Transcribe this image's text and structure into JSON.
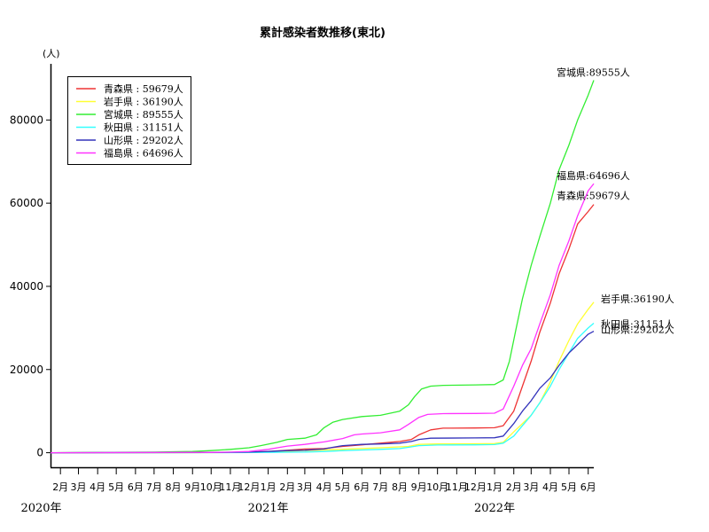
{
  "chart_data": {
    "type": "line",
    "title": "累計感染者数推移(東北)",
    "ylabel": "(人)",
    "ylim": [
      -3500,
      93500
    ],
    "yticks": [
      0,
      20000,
      40000,
      60000,
      80000
    ],
    "x_start": "2020-01-16",
    "x_end": "2022-06-10",
    "months": [
      {
        "date": "2020-02-01",
        "label": "2月"
      },
      {
        "date": "2020-03-01",
        "label": "3月"
      },
      {
        "date": "2020-04-01",
        "label": "4月"
      },
      {
        "date": "2020-05-01",
        "label": "5月"
      },
      {
        "date": "2020-06-01",
        "label": "6月"
      },
      {
        "date": "2020-07-01",
        "label": "7月"
      },
      {
        "date": "2020-08-01",
        "label": "8月"
      },
      {
        "date": "2020-09-01",
        "label": "9月"
      },
      {
        "date": "2020-10-01",
        "label": "10月"
      },
      {
        "date": "2020-11-01",
        "label": "11月"
      },
      {
        "date": "2020-12-01",
        "label": "12月"
      },
      {
        "date": "2021-01-01",
        "label": "1月"
      },
      {
        "date": "2021-02-01",
        "label": "2月"
      },
      {
        "date": "2021-03-01",
        "label": "3月"
      },
      {
        "date": "2021-04-01",
        "label": "4月"
      },
      {
        "date": "2021-05-01",
        "label": "5月"
      },
      {
        "date": "2021-06-01",
        "label": "6月"
      },
      {
        "date": "2021-07-01",
        "label": "7月"
      },
      {
        "date": "2021-08-01",
        "label": "8月"
      },
      {
        "date": "2021-09-01",
        "label": "9月"
      },
      {
        "date": "2021-10-01",
        "label": "10月"
      },
      {
        "date": "2021-11-01",
        "label": "11月"
      },
      {
        "date": "2021-12-01",
        "label": "12月"
      },
      {
        "date": "2022-01-01",
        "label": "1月"
      },
      {
        "date": "2022-02-01",
        "label": "2月"
      },
      {
        "date": "2022-03-01",
        "label": "3月"
      },
      {
        "date": "2022-04-01",
        "label": "4月"
      },
      {
        "date": "2022-05-01",
        "label": "5月"
      },
      {
        "date": "2022-06-01",
        "label": "6月"
      }
    ],
    "years": [
      {
        "date": "2020-01-01",
        "label": "2020年"
      },
      {
        "date": "2021-01-01",
        "label": "2021年"
      },
      {
        "date": "2022-01-01",
        "label": "2022年"
      }
    ],
    "legend_position": "top-left",
    "grid": false,
    "series": [
      {
        "name": "青森県",
        "legend": "青森県 : 59679人",
        "end_label": "青森県:59679人",
        "color": "#ee3333",
        "points": [
          [
            "2020-01-16",
            0
          ],
          [
            "2020-10-01",
            40
          ],
          [
            "2020-12-01",
            150
          ],
          [
            "2021-01-01",
            300
          ],
          [
            "2021-02-01",
            600
          ],
          [
            "2021-03-01",
            900
          ],
          [
            "2021-04-01",
            1000
          ],
          [
            "2021-05-01",
            1500
          ],
          [
            "2021-06-01",
            1900
          ],
          [
            "2021-07-01",
            2300
          ],
          [
            "2021-08-01",
            2700
          ],
          [
            "2021-08-20",
            3200
          ],
          [
            "2021-09-01",
            4300
          ],
          [
            "2021-09-20",
            5500
          ],
          [
            "2021-10-10",
            5900
          ],
          [
            "2021-12-01",
            5950
          ],
          [
            "2022-01-01",
            6000
          ],
          [
            "2022-01-15",
            6500
          ],
          [
            "2022-02-01",
            10000
          ],
          [
            "2022-02-15",
            16000
          ],
          [
            "2022-03-01",
            22000
          ],
          [
            "2022-03-15",
            29000
          ],
          [
            "2022-04-01",
            36000
          ],
          [
            "2022-04-15",
            43000
          ],
          [
            "2022-05-01",
            49000
          ],
          [
            "2022-05-15",
            55000
          ],
          [
            "2022-06-01",
            58000
          ],
          [
            "2022-06-10",
            59679
          ]
        ]
      },
      {
        "name": "岩手県",
        "legend": "岩手県 : 36190人",
        "end_label": "岩手県:36190人",
        "color": "#ffff33",
        "points": [
          [
            "2020-01-16",
            0
          ],
          [
            "2020-10-01",
            20
          ],
          [
            "2020-12-01",
            80
          ],
          [
            "2021-01-01",
            200
          ],
          [
            "2021-03-01",
            500
          ],
          [
            "2021-05-01",
            800
          ],
          [
            "2021-07-01",
            1200
          ],
          [
            "2021-08-15",
            1500
          ],
          [
            "2021-09-01",
            2000
          ],
          [
            "2021-10-01",
            2100
          ],
          [
            "2021-12-01",
            2150
          ],
          [
            "2022-01-01",
            2200
          ],
          [
            "2022-01-15",
            2500
          ],
          [
            "2022-02-01",
            5000
          ],
          [
            "2022-03-01",
            9000
          ],
          [
            "2022-03-15",
            12000
          ],
          [
            "2022-04-01",
            17000
          ],
          [
            "2022-04-15",
            22000
          ],
          [
            "2022-05-01",
            27000
          ],
          [
            "2022-05-15",
            31000
          ],
          [
            "2022-06-01",
            34500
          ],
          [
            "2022-06-10",
            36190
          ]
        ]
      },
      {
        "name": "宮城県",
        "legend": "宮城県 : 89555人",
        "end_label": "宮城県:89555人",
        "color": "#33ee33",
        "points": [
          [
            "2020-01-16",
            0
          ],
          [
            "2020-04-01",
            80
          ],
          [
            "2020-07-01",
            150
          ],
          [
            "2020-09-01",
            300
          ],
          [
            "2020-10-01",
            500
          ],
          [
            "2020-11-01",
            800
          ],
          [
            "2020-12-01",
            1200
          ],
          [
            "2020-12-20",
            1700
          ],
          [
            "2021-01-15",
            2500
          ],
          [
            "2021-02-01",
            3200
          ],
          [
            "2021-03-01",
            3500
          ],
          [
            "2021-03-20",
            4300
          ],
          [
            "2021-04-01",
            6000
          ],
          [
            "2021-04-15",
            7300
          ],
          [
            "2021-05-01",
            8000
          ],
          [
            "2021-06-01",
            8700
          ],
          [
            "2021-07-01",
            9000
          ],
          [
            "2021-08-01",
            10000
          ],
          [
            "2021-08-15",
            11500
          ],
          [
            "2021-08-25",
            13500
          ],
          [
            "2021-09-05",
            15300
          ],
          [
            "2021-09-20",
            16000
          ],
          [
            "2021-10-10",
            16200
          ],
          [
            "2021-12-01",
            16300
          ],
          [
            "2022-01-01",
            16400
          ],
          [
            "2022-01-15",
            17500
          ],
          [
            "2022-01-25",
            22000
          ],
          [
            "2022-02-05",
            30000
          ],
          [
            "2022-02-15",
            37000
          ],
          [
            "2022-03-01",
            45000
          ],
          [
            "2022-03-15",
            52000
          ],
          [
            "2022-04-01",
            60000
          ],
          [
            "2022-04-15",
            68000
          ],
          [
            "2022-05-01",
            74000
          ],
          [
            "2022-05-15",
            80000
          ],
          [
            "2022-06-01",
            86000
          ],
          [
            "2022-06-10",
            89555
          ]
        ]
      },
      {
        "name": "秋田県",
        "legend": "秋田県 : 31151人",
        "end_label": "秋田県:31151人",
        "color": "#33ffff",
        "points": [
          [
            "2020-01-16",
            0
          ],
          [
            "2020-10-01",
            20
          ],
          [
            "2020-12-01",
            50
          ],
          [
            "2021-01-01",
            80
          ],
          [
            "2021-03-01",
            150
          ],
          [
            "2021-04-01",
            300
          ],
          [
            "2021-05-01",
            500
          ],
          [
            "2021-06-01",
            650
          ],
          [
            "2021-07-01",
            800
          ],
          [
            "2021-08-01",
            1000
          ],
          [
            "2021-08-15",
            1300
          ],
          [
            "2021-09-01",
            1700
          ],
          [
            "2021-10-01",
            1850
          ],
          [
            "2021-12-01",
            1900
          ],
          [
            "2022-01-01",
            1950
          ],
          [
            "2022-01-15",
            2300
          ],
          [
            "2022-02-01",
            4000
          ],
          [
            "2022-02-15",
            6500
          ],
          [
            "2022-03-01",
            9000
          ],
          [
            "2022-03-15",
            12000
          ],
          [
            "2022-04-01",
            16000
          ],
          [
            "2022-04-15",
            20000
          ],
          [
            "2022-05-01",
            24000
          ],
          [
            "2022-05-15",
            27500
          ],
          [
            "2022-06-01",
            30000
          ],
          [
            "2022-06-10",
            31151
          ]
        ]
      },
      {
        "name": "山形県",
        "legend": "山形県 : 29202人",
        "end_label": "山形県:29202人",
        "color": "#3333bb",
        "points": [
          [
            "2020-01-16",
            0
          ],
          [
            "2020-10-01",
            40
          ],
          [
            "2020-12-01",
            150
          ],
          [
            "2021-01-01",
            300
          ],
          [
            "2021-02-01",
            500
          ],
          [
            "2021-03-01",
            600
          ],
          [
            "2021-04-01",
            900
          ],
          [
            "2021-04-15",
            1300
          ],
          [
            "2021-05-01",
            1700
          ],
          [
            "2021-06-01",
            2000
          ],
          [
            "2021-07-01",
            2100
          ],
          [
            "2021-08-01",
            2300
          ],
          [
            "2021-08-20",
            2700
          ],
          [
            "2021-09-01",
            3200
          ],
          [
            "2021-09-20",
            3500
          ],
          [
            "2021-12-01",
            3550
          ],
          [
            "2022-01-01",
            3600
          ],
          [
            "2022-01-15",
            4000
          ],
          [
            "2022-02-01",
            7000
          ],
          [
            "2022-02-15",
            10000
          ],
          [
            "2022-03-01",
            12500
          ],
          [
            "2022-03-15",
            15500
          ],
          [
            "2022-04-01",
            18000
          ],
          [
            "2022-04-15",
            21000
          ],
          [
            "2022-05-01",
            24000
          ],
          [
            "2022-05-15",
            26000
          ],
          [
            "2022-06-01",
            28500
          ],
          [
            "2022-06-10",
            29202
          ]
        ]
      },
      {
        "name": "福島県",
        "legend": "福島県 : 64696人",
        "end_label": "福島県:64696人",
        "color": "#ff33ff",
        "points": [
          [
            "2020-01-16",
            0
          ],
          [
            "2020-10-01",
            80
          ],
          [
            "2020-11-01",
            150
          ],
          [
            "2020-12-01",
            300
          ],
          [
            "2021-01-01",
            800
          ],
          [
            "2021-01-20",
            1300
          ],
          [
            "2021-02-01",
            1600
          ],
          [
            "2021-03-01",
            2000
          ],
          [
            "2021-04-01",
            2600
          ],
          [
            "2021-05-01",
            3400
          ],
          [
            "2021-05-20",
            4300
          ],
          [
            "2021-06-01",
            4500
          ],
          [
            "2021-07-01",
            4800
          ],
          [
            "2021-08-01",
            5500
          ],
          [
            "2021-08-15",
            6800
          ],
          [
            "2021-09-01",
            8500
          ],
          [
            "2021-09-15",
            9200
          ],
          [
            "2021-10-10",
            9400
          ],
          [
            "2021-12-01",
            9450
          ],
          [
            "2022-01-01",
            9500
          ],
          [
            "2022-01-15",
            10500
          ],
          [
            "2022-02-01",
            16000
          ],
          [
            "2022-02-15",
            21000
          ],
          [
            "2022-03-01",
            25000
          ],
          [
            "2022-03-15",
            31000
          ],
          [
            "2022-04-01",
            38000
          ],
          [
            "2022-04-15",
            45000
          ],
          [
            "2022-05-01",
            51000
          ],
          [
            "2022-05-15",
            57000
          ],
          [
            "2022-06-01",
            63000
          ],
          [
            "2022-06-10",
            64696
          ]
        ]
      }
    ]
  }
}
